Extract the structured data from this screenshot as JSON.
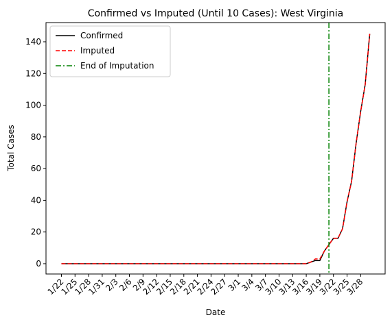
{
  "chart_data": {
    "type": "line",
    "title": "Confirmed vs Imputed (Until 10 Cases): West Virginia",
    "x_label": "Date",
    "y_label": "Total Cases",
    "categories": [
      "1/22",
      null,
      null,
      "1/25",
      null,
      null,
      "1/28",
      null,
      null,
      "1/31",
      null,
      null,
      "2/3",
      null,
      null,
      "2/6",
      null,
      null,
      "2/9",
      null,
      null,
      "2/12",
      null,
      null,
      "2/15",
      null,
      null,
      "2/18",
      null,
      null,
      "2/21",
      null,
      null,
      "2/24",
      null,
      null,
      "2/27",
      null,
      null,
      "3/1",
      null,
      null,
      "3/4",
      null,
      null,
      "3/7",
      null,
      null,
      "3/10",
      null,
      null,
      "3/13",
      null,
      null,
      "3/16",
      null,
      null,
      "3/19",
      null,
      null,
      "3/22",
      null,
      null,
      "3/25",
      null,
      null,
      "3/28",
      null,
      null
    ],
    "series": [
      {
        "name": "Confirmed",
        "color": "#000000",
        "dash": "solid",
        "values": [
          0,
          0,
          0,
          0,
          0,
          0,
          0,
          0,
          0,
          0,
          0,
          0,
          0,
          0,
          0,
          0,
          0,
          0,
          0,
          0,
          0,
          0,
          0,
          0,
          0,
          0,
          0,
          0,
          0,
          0,
          0,
          0,
          0,
          0,
          0,
          0,
          0,
          0,
          0,
          0,
          0,
          0,
          0,
          0,
          0,
          0,
          0,
          0,
          0,
          0,
          0,
          0,
          0,
          0,
          0,
          1,
          2,
          2,
          8,
          12,
          16,
          16,
          22,
          39,
          52,
          76,
          96,
          113,
          145
        ]
      },
      {
        "name": "Imputed",
        "color": "#ff0000",
        "dash": "dashed",
        "values": [
          0,
          0,
          0,
          0,
          0,
          0,
          0,
          0,
          0,
          0,
          0,
          0,
          0,
          0,
          0,
          0,
          0,
          0,
          0,
          0,
          0,
          0,
          0,
          0,
          0,
          0,
          0,
          0,
          0,
          0,
          0,
          0,
          0,
          0,
          0,
          0,
          0,
          0,
          0,
          0,
          0,
          0,
          0,
          0,
          0,
          0,
          0,
          0,
          0,
          0,
          0,
          0,
          0,
          0,
          0,
          1,
          3,
          3,
          8,
          12,
          16,
          16,
          22,
          39,
          52,
          76,
          96,
          113,
          145
        ]
      }
    ],
    "vlines": [
      {
        "name": "End of Imputation",
        "color": "#008000",
        "dash": "dashdot",
        "x": 59
      }
    ],
    "xlim": [
      -3.4,
      71.4
    ],
    "ylim": [
      -6.5,
      152.1
    ],
    "yticks": [
      0,
      20,
      40,
      60,
      80,
      100,
      120,
      140
    ],
    "legend": "upper left"
  }
}
